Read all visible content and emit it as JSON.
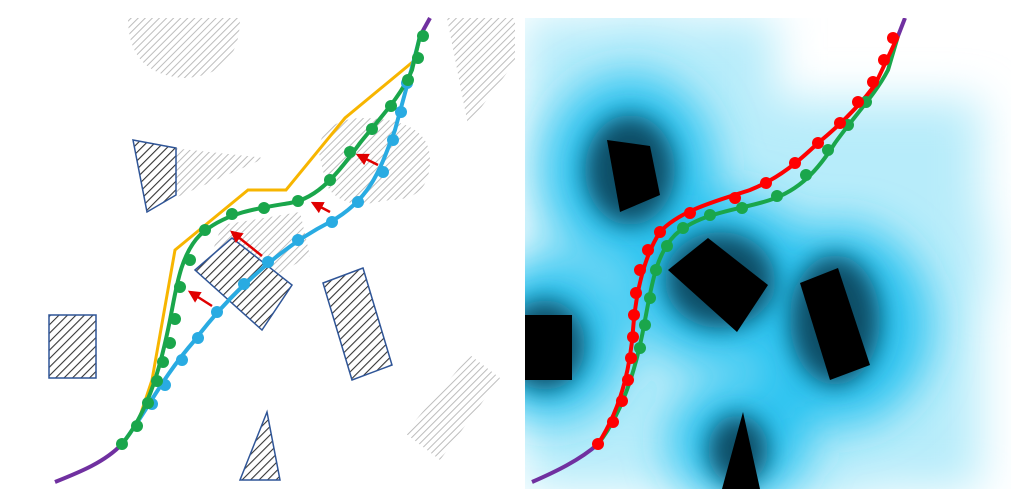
{
  "figure": {
    "panels": [
      {
        "id": "left",
        "description_free": true,
        "obstacles": {
          "dark_hatched": [
            "obstacle-small-quad",
            "obstacle-tilted-rect-center",
            "obstacle-rect-left",
            "obstacle-rect-right",
            "obstacle-triangle-bottom"
          ],
          "gray_hatched": [
            "moving-obstacle-top-halfdisk",
            "moving-obstacle-top-right-wedge",
            "moving-obstacle-swept-quad",
            "moving-obstacle-swept-center",
            "moving-obstacle-rounded-right",
            "moving-obstacle-bottom-right"
          ]
        },
        "paths": [
          "initial-path-blue",
          "optimized-path-green",
          "bounding-path-orange",
          "prefix-suffix-purple"
        ],
        "arrows": 4
      },
      {
        "id": "right",
        "paths": [
          "initial-path-green",
          "optimized-path-red",
          "prefix-suffix-purple"
        ]
      }
    ],
    "colors": {
      "blue": "#29abe2",
      "green": "#1aa64b",
      "orange": "#f7b500",
      "purple": "#7030a0",
      "red": "#ff0000",
      "hatch_dark": "#3a3a3a",
      "hatch_gray": "#b8b8b8",
      "outline": "#2f5597",
      "field_light": "#d9f4fb",
      "field_mid": "#29c3f0",
      "field_dark": "#000000"
    }
  }
}
